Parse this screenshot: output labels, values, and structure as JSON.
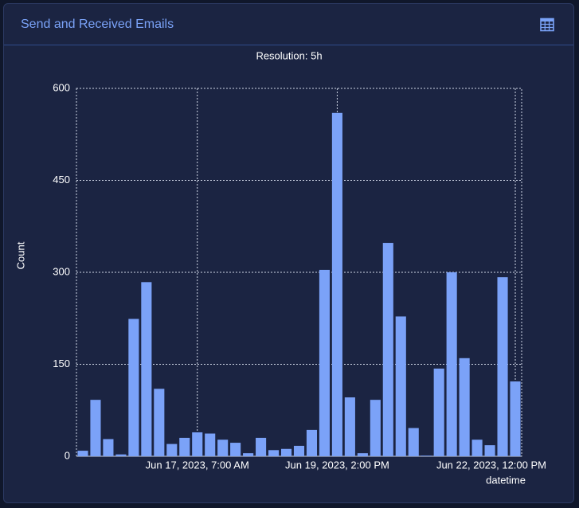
{
  "header": {
    "title": "Send and Received Emails"
  },
  "chart_data": {
    "type": "bar",
    "subtitle": "Resolution: 5h",
    "y_label": "Count",
    "x_label": "datetime",
    "x": [
      "2023-06-15T10:00",
      "2023-06-15T15:00",
      "2023-06-15T20:00",
      "2023-06-16T01:00",
      "2023-06-16T06:00",
      "2023-06-16T11:00",
      "2023-06-16T16:00",
      "2023-06-16T21:00",
      "2023-06-17T02:00",
      "2023-06-17T07:00",
      "2023-06-17T12:00",
      "2023-06-17T17:00",
      "2023-06-17T22:00",
      "2023-06-18T03:00",
      "2023-06-18T08:00",
      "2023-06-18T13:00",
      "2023-06-18T18:00",
      "2023-06-18T23:00",
      "2023-06-19T04:00",
      "2023-06-19T09:00",
      "2023-06-19T14:00",
      "2023-06-19T19:00",
      "2023-06-20T00:00",
      "2023-06-20T05:00",
      "2023-06-20T10:00",
      "2023-06-20T15:00",
      "2023-06-20T20:00",
      "2023-06-21T01:00",
      "2023-06-21T06:00",
      "2023-06-21T11:00",
      "2023-06-21T16:00",
      "2023-06-21T21:00",
      "2023-06-22T02:00",
      "2023-06-22T07:00",
      "2023-06-22T12:00"
    ],
    "values": [
      9,
      92,
      28,
      3,
      224,
      284,
      110,
      20,
      30,
      39,
      37,
      27,
      22,
      5,
      30,
      10,
      12,
      17,
      43,
      304,
      560,
      96,
      5,
      92,
      348,
      228,
      46,
      1,
      143,
      300,
      160,
      27,
      18,
      292,
      122
    ],
    "color": "#7ba2f8",
    "xlim": [
      "2023-06-15T07:30",
      "2023-06-22T14:30"
    ],
    "xticks": [
      {
        "value": "2023-06-17T07:00",
        "label": "Jun 17, 2023, 7:00 AM"
      },
      {
        "value": "2023-06-19T14:00",
        "label": "Jun 19, 2023, 2:00 PM"
      },
      {
        "value": "2023-06-22T12:00",
        "label": "Jun 22, 2023, 12:00 PM"
      }
    ],
    "ylim": [
      0,
      600
    ],
    "yticks": [
      0,
      150,
      300,
      450,
      600
    ],
    "grid": true
  }
}
